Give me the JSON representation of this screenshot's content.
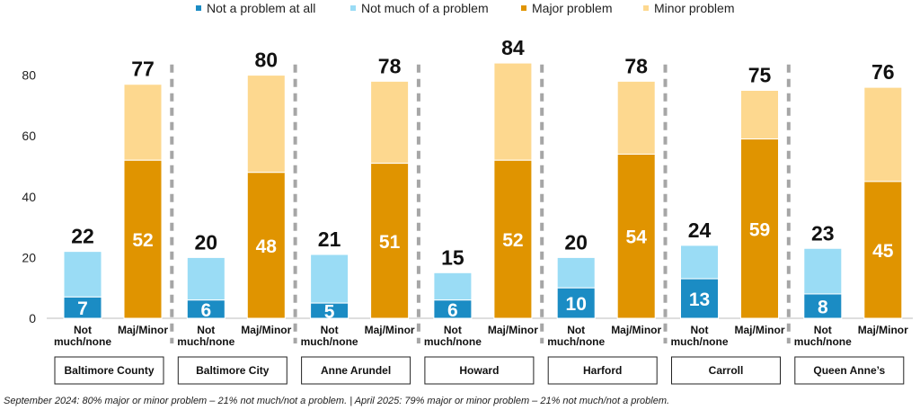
{
  "legend": {
    "items": [
      {
        "label": "Not a problem at all",
        "color": "#1b8cc4"
      },
      {
        "label": "Not much of a problem",
        "color": "#9adcf5"
      },
      {
        "label": "Major problem",
        "color": "#e09400"
      },
      {
        "label": "Minor problem",
        "color": "#fdd88f"
      }
    ]
  },
  "footnote": "September 2024: 80% major or minor problem – 21% not much/not a problem. | April 2025: 79% major or minor problem – 21% not much/not a problem.",
  "chart_data": {
    "type": "bar",
    "stacked": true,
    "ylim": [
      0,
      90
    ],
    "yticks": [
      0,
      20,
      40,
      60,
      80
    ],
    "grid": false,
    "legend_position": "top",
    "bar_labels": {
      "not_much": [
        "Not",
        "much/none"
      ],
      "maj_minor": [
        "Maj/Minor"
      ]
    },
    "colors": {
      "not_at_all": "#1b8cc4",
      "not_much": "#9adcf5",
      "major": "#e09400",
      "minor": "#fdd88f"
    },
    "groups": [
      {
        "name": "Baltimore County",
        "not_at_all": 7,
        "not_much_total": 22,
        "major": 52,
        "maj_minor_total": 77
      },
      {
        "name": "Baltimore City",
        "not_at_all": 6,
        "not_much_total": 20,
        "major": 48,
        "maj_minor_total": 80
      },
      {
        "name": "Anne Arundel",
        "not_at_all": 5,
        "not_much_total": 21,
        "major": 51,
        "maj_minor_total": 78
      },
      {
        "name": "Howard",
        "not_at_all": 6,
        "not_much_total": 15,
        "major": 52,
        "maj_minor_total": 84
      },
      {
        "name": "Harford",
        "not_at_all": 10,
        "not_much_total": 20,
        "major": 54,
        "maj_minor_total": 78
      },
      {
        "name": "Carroll",
        "not_at_all": 13,
        "not_much_total": 24,
        "major": 59,
        "maj_minor_total": 75
      },
      {
        "name": "Queen Anne’s",
        "not_at_all": 8,
        "not_much_total": 23,
        "major": 45,
        "maj_minor_total": 76
      }
    ]
  }
}
